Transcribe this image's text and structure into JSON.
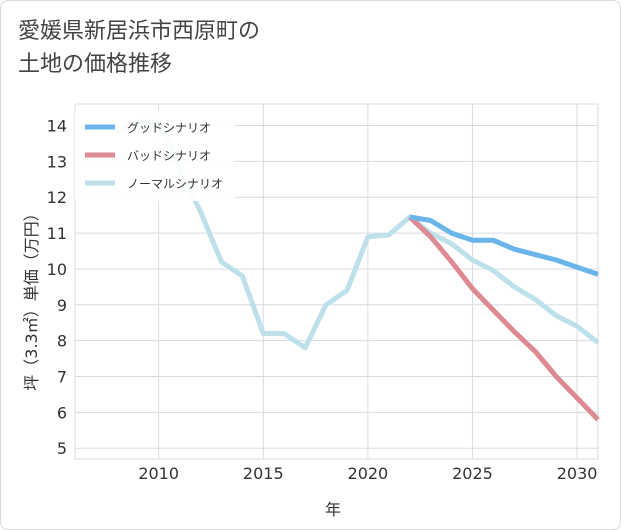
{
  "title_line1": "愛媛県新居浜市西原町の",
  "title_line2": "土地の価格推移",
  "chart_data": {
    "type": "line",
    "xlabel": "年",
    "ylabel": "坪（3.3㎡）単価（万円）",
    "xlim": [
      2006,
      2031
    ],
    "ylim": [
      4.7,
      14.6
    ],
    "xticks": [
      2010,
      2015,
      2020,
      2025,
      2030
    ],
    "yticks": [
      5,
      6,
      7,
      8,
      9,
      10,
      11,
      12,
      13,
      14
    ],
    "grid": true,
    "legend_position": "top-left",
    "series": [
      {
        "name": "グッドシナリオ",
        "color": "#6ab4ea",
        "x": [
          2022,
          2023,
          2024,
          2025,
          2026,
          2027,
          2028,
          2029,
          2030,
          2031
        ],
        "y": [
          11.45,
          11.35,
          11.0,
          10.8,
          10.8,
          10.55,
          10.4,
          10.25,
          10.05,
          9.85
        ]
      },
      {
        "name": "バッドシナリオ",
        "color": "#de8a92",
        "x": [
          2022,
          2023,
          2024,
          2025,
          2026,
          2027,
          2028,
          2029,
          2030,
          2031
        ],
        "y": [
          11.45,
          10.9,
          10.2,
          9.45,
          8.85,
          8.25,
          7.7,
          7.0,
          6.4,
          5.8
        ]
      },
      {
        "name": "ノーマルシナリオ",
        "color": "#bee0eb",
        "x": [
          2008,
          2009,
          2010,
          2011,
          2012,
          2013,
          2014,
          2015,
          2016,
          2017,
          2018,
          2019,
          2020,
          2021,
          2022,
          2023,
          2024,
          2025,
          2026,
          2027,
          2028,
          2029,
          2030,
          2031
        ],
        "y": [
          13.8,
          14.1,
          14.1,
          12.8,
          11.6,
          10.2,
          9.8,
          8.2,
          8.2,
          7.8,
          9.0,
          9.4,
          10.9,
          10.95,
          11.45,
          11.0,
          10.7,
          10.25,
          9.95,
          9.5,
          9.15,
          8.7,
          8.4,
          7.95
        ]
      }
    ]
  }
}
